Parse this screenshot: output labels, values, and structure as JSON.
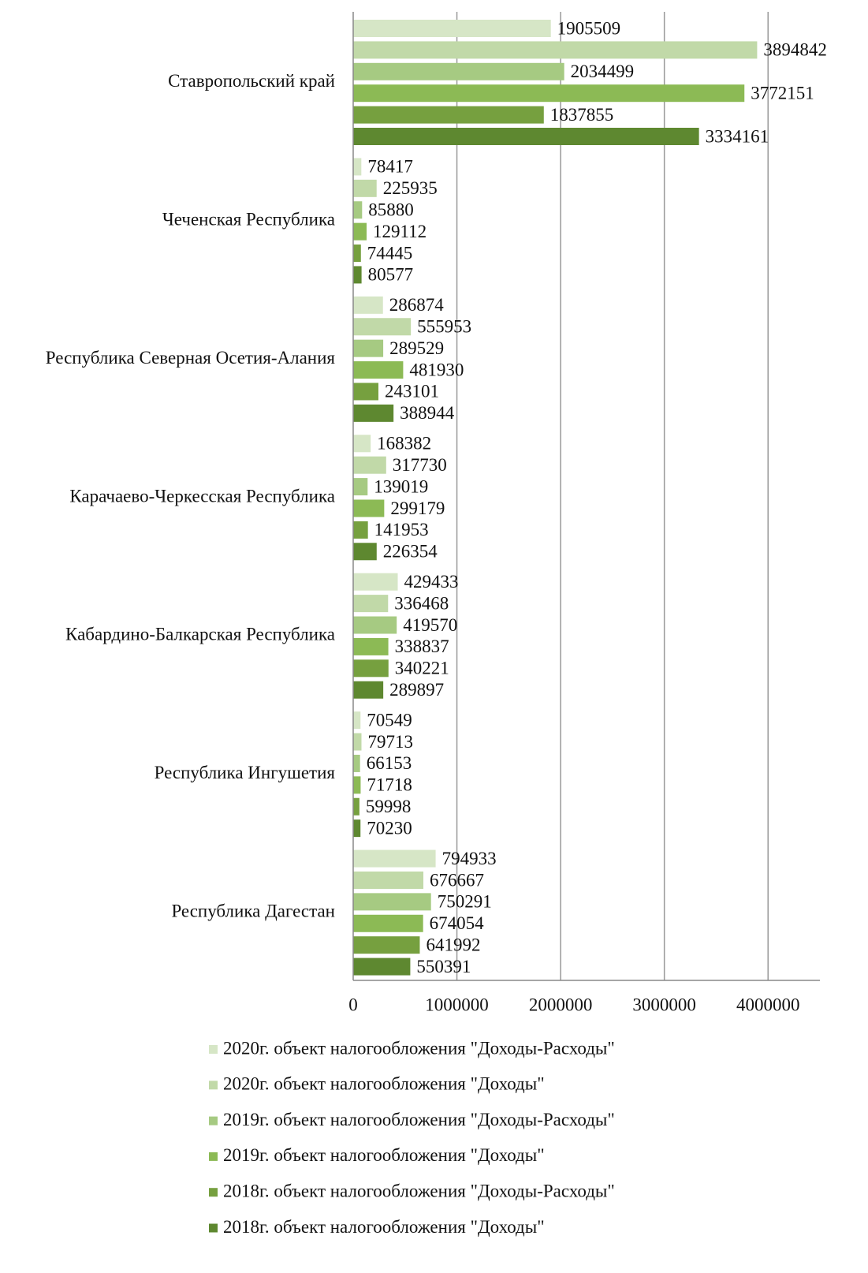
{
  "chart_data": {
    "type": "hbar",
    "categories": [
      "Ставропольский край",
      "Чеченская Республика",
      "Республика Северная Осетия-Алания",
      "Карачаево-Черкесская Республика",
      "Кабардино-Балкарская Республика",
      "Республика Ингушетия",
      "Республика Дагестан"
    ],
    "series": [
      {
        "name": "2020г. объект налогообложения \"Доходы-Расходы\"",
        "color": "#d6e6c6",
        "values": [
          1905509,
          78417,
          286874,
          168382,
          429433,
          70549,
          794933
        ]
      },
      {
        "name": "2020г. объект налогообложения \"Доходы\"",
        "color": "#c1d9a8",
        "values": [
          3894842,
          225935,
          555953,
          317730,
          336468,
          79713,
          676667
        ]
      },
      {
        "name": "2019г. объект налогообложения \"Доходы-Расходы\"",
        "color": "#a6ca82",
        "values": [
          2034499,
          85880,
          289529,
          139019,
          419570,
          66153,
          750291
        ]
      },
      {
        "name": "2019г. объект налогообложения \"Доходы\"",
        "color": "#8cba55",
        "values": [
          3772151,
          129112,
          481930,
          299179,
          338837,
          71718,
          674054
        ]
      },
      {
        "name": "2018г. объект налогообложения \"Доходы-Расходы\"",
        "color": "#76a03f",
        "values": [
          1837855,
          74445,
          243101,
          141953,
          340221,
          59998,
          641992
        ]
      },
      {
        "name": "2018г. объект налогообложения \"Доходы\"",
        "color": "#5e8830",
        "values": [
          3334161,
          80577,
          388944,
          226354,
          289897,
          70230,
          550391
        ]
      }
    ],
    "xlim": [
      0,
      4500000
    ],
    "xticks": [
      0,
      1000000,
      2000000,
      3000000,
      4000000
    ],
    "grid": true,
    "legend": "bottom"
  }
}
